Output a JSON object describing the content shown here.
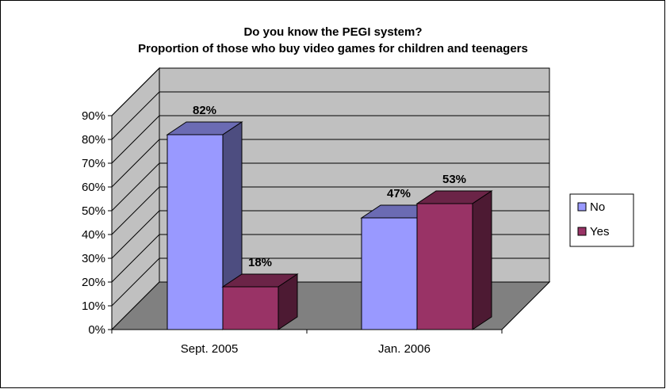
{
  "chart_data": {
    "type": "bar",
    "title": "Do you know the PEGI system?",
    "subtitle": "Proportion of those who buy video games for children and teenagers",
    "categories": [
      "Sept. 2005",
      "Jan. 2006"
    ],
    "series": [
      {
        "name": "No",
        "values": [
          82,
          47
        ],
        "color": "#9999ff",
        "side_color": "#4d4d80",
        "top_color": "#6b6bb3"
      },
      {
        "name": "Yes",
        "values": [
          18,
          53
        ],
        "color": "#993366",
        "side_color": "#4d1a33",
        "top_color": "#6b2447"
      }
    ],
    "data_labels": [
      [
        "82%",
        "47%"
      ],
      [
        "18%",
        "53%"
      ]
    ],
    "y_ticks": [
      "0%",
      "10%",
      "20%",
      "30%",
      "40%",
      "50%",
      "60%",
      "70%",
      "80%",
      "90%"
    ],
    "ylim": [
      0,
      90
    ],
    "grid": true,
    "legend": "right",
    "style_3d": true,
    "wall_color": "#c0c0c0",
    "floor_color": "#808080"
  }
}
